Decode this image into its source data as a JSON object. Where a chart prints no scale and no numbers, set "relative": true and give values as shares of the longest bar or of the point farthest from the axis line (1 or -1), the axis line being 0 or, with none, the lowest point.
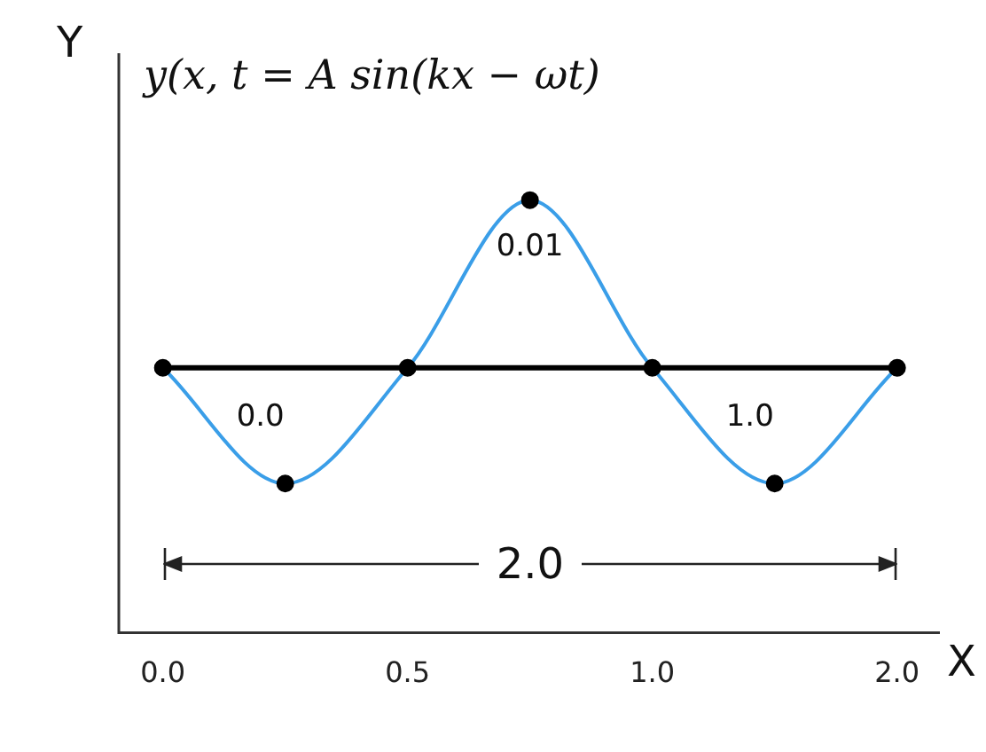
{
  "chart_data": {
    "type": "line",
    "title": "y(x, t = A sin(kx − ωt)",
    "xlabel": "X",
    "ylabel": "Y",
    "categories": [
      "0.0",
      null,
      "0.5",
      null,
      "1.0",
      null,
      "2.0"
    ],
    "relative": true,
    "series": [
      {
        "color": "#3a9ee8",
        "values": [
          0,
          -0.69,
          0,
          1,
          0,
          -0.69,
          0
        ]
      }
    ],
    "marker": "circle",
    "line_style": "solid",
    "grid": false,
    "legend": false,
    "ref_lines": [
      {
        "axis": "y",
        "value": 0,
        "color": "#000000"
      }
    ],
    "annotations": [
      "0.0",
      "0.01",
      "1.0",
      "2.0"
    ]
  }
}
